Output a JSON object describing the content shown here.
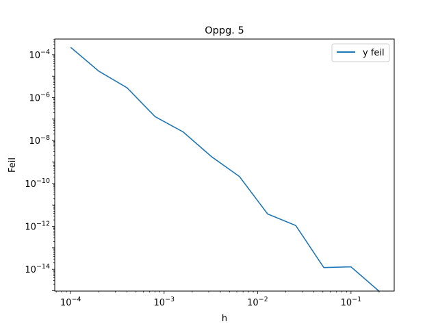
{
  "chart_data": {
    "type": "line",
    "title": "Oppg. 5",
    "xlabel": "h",
    "ylabel": "Feil",
    "xscale": "log",
    "yscale": "log",
    "xlim": [
      6.75e-05,
      0.29
    ],
    "ylim": [
      9.66e-16,
      0.000537
    ],
    "xticks": [
      {
        "value": 0.0001,
        "label": "10^-4"
      },
      {
        "value": 0.001,
        "label": "10^-3"
      },
      {
        "value": 0.01,
        "label": "10^-2"
      },
      {
        "value": 0.1,
        "label": "10^-1"
      }
    ],
    "yticks": [
      {
        "value": 0.0001,
        "label": "10^-4"
      },
      {
        "value": 1e-06,
        "label": "10^-6"
      },
      {
        "value": 1e-08,
        "label": "10^-8"
      },
      {
        "value": 1e-10,
        "label": "10^-10"
      },
      {
        "value": 1e-12,
        "label": "10^-12"
      },
      {
        "value": 1e-14,
        "label": "10^-14"
      }
    ],
    "grid": false,
    "legend_position": "top-right",
    "series": [
      {
        "name": "y feil",
        "color": "#1f77b4",
        "x": [
          0.0001,
          0.0002,
          0.0004,
          0.0008,
          0.0016,
          0.0032,
          0.0064,
          0.0128,
          0.0256,
          0.0512,
          0.1,
          0.2
        ],
        "y": [
          0.00022,
          1.7e-05,
          2.9e-06,
          1.3e-07,
          2.5e-08,
          1.8e-09,
          2.1e-10,
          3.8e-12,
          1.1e-12,
          1.2e-14,
          1.3e-14,
          9.5e-16
        ]
      }
    ]
  }
}
